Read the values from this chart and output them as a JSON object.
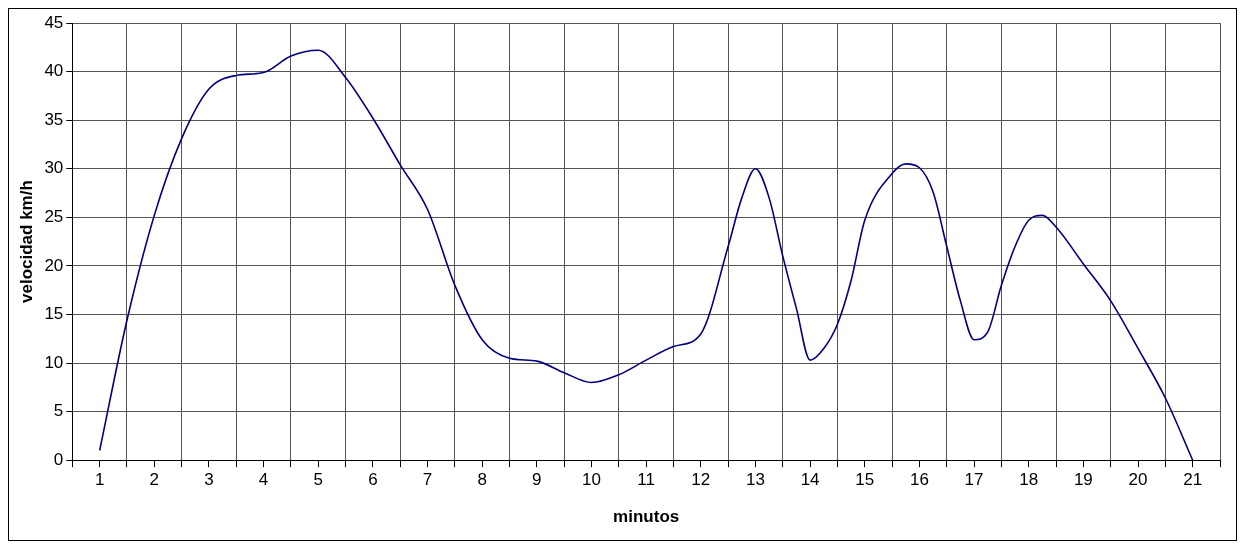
{
  "chart_data": {
    "type": "line",
    "xlabel": "minutos",
    "ylabel": "velocidad km/h",
    "x": [
      1,
      1.5,
      2,
      2.5,
      3,
      3.5,
      4,
      4.5,
      5,
      5.5,
      6,
      6.5,
      7,
      7.5,
      8,
      8.5,
      9,
      9.5,
      10,
      10.5,
      11,
      11.5,
      12,
      12.5,
      12.75,
      13,
      13.25,
      13.5,
      13.75,
      14,
      14.25,
      14.5,
      14.75,
      15,
      15.5,
      15.75,
      16,
      16.25,
      16.5,
      16.75,
      17,
      17.25,
      17.5,
      17.75,
      18,
      18.25,
      18.5,
      19,
      19.5,
      20,
      20.5,
      21
    ],
    "series": [
      {
        "color": "#000080",
        "values": [
          1,
          14.4,
          25.2,
          33.1,
          38.2,
          39.6,
          39.9,
          41.6,
          42.2,
          39.4,
          35.2,
          30.4,
          25.8,
          18,
          12.4,
          10.5,
          10.2,
          9,
          8,
          8.8,
          10.3,
          11.7,
          13,
          22,
          27,
          30,
          27,
          21,
          15.6,
          10.3,
          11.5,
          14,
          18.5,
          24.7,
          29.5,
          30.5,
          30.1,
          27.6,
          22,
          16.4,
          12.4,
          13.2,
          18,
          22,
          24.7,
          25.2,
          24,
          20.2,
          16.4,
          11.5,
          6.4,
          0
        ]
      }
    ],
    "xlim": [
      0.5,
      21.5
    ],
    "xticks": [
      {
        "value": 0.5,
        "label": null
      },
      1,
      {
        "value": 1.5,
        "label": null
      },
      2,
      {
        "value": 2.5,
        "label": null
      },
      3,
      {
        "value": 3.5,
        "label": null
      },
      4,
      {
        "value": 4.5,
        "label": null
      },
      5,
      {
        "value": 5.5,
        "label": null
      },
      6,
      {
        "value": 6.5,
        "label": null
      },
      7,
      {
        "value": 7.5,
        "label": null
      },
      8,
      {
        "value": 8.5,
        "label": null
      },
      9,
      {
        "value": 9.5,
        "label": null
      },
      10,
      {
        "value": 10.5,
        "label": null
      },
      11,
      {
        "value": 11.5,
        "label": null
      },
      12,
      {
        "value": 12.5,
        "label": null
      },
      13,
      {
        "value": 13.5,
        "label": null
      },
      14,
      {
        "value": 14.5,
        "label": null
      },
      15,
      {
        "value": 15.5,
        "label": null
      },
      16,
      {
        "value": 16.5,
        "label": null
      },
      17,
      {
        "value": 17.5,
        "label": null
      },
      18,
      {
        "value": 18.5,
        "label": null
      },
      19,
      {
        "value": 19.5,
        "label": null
      },
      20,
      {
        "value": 20.5,
        "label": null
      },
      21,
      {
        "value": 21.5,
        "label": null
      }
    ],
    "ylim": [
      0,
      45
    ],
    "yticks": [
      0,
      5,
      10,
      15,
      20,
      25,
      30,
      35,
      40,
      45
    ],
    "grid": true,
    "legend": false,
    "marker": "none",
    "line_style": "solid"
  }
}
